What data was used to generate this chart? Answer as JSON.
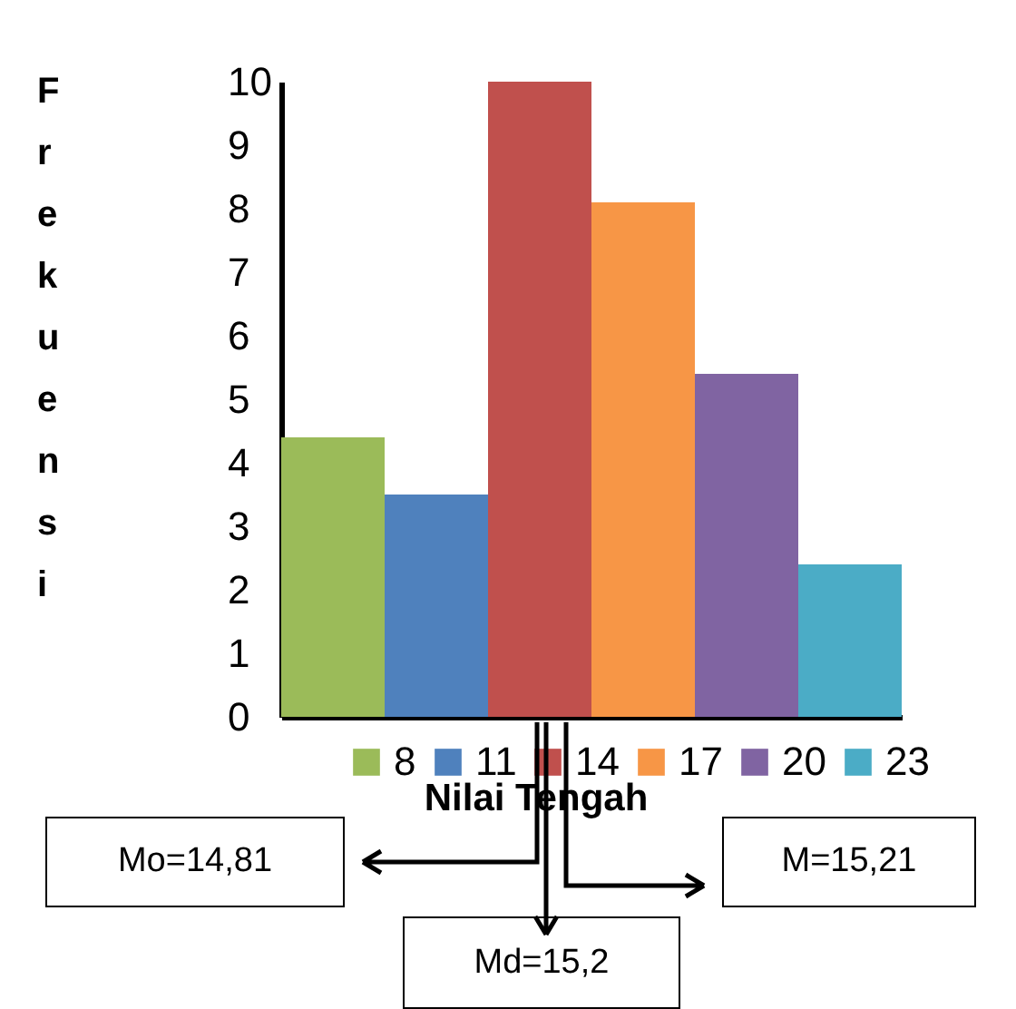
{
  "chart_data": {
    "type": "bar",
    "xlabel": "Nilai Tengah",
    "ylabel": "Frekuensi",
    "categories": [
      null,
      null,
      null,
      null,
      null,
      null
    ],
    "series": [
      {
        "name": "8",
        "color": "#9bbb59",
        "values": [
          4.4,
          null,
          null,
          null,
          null,
          null
        ]
      },
      {
        "name": "11",
        "color": "#4f81bd",
        "values": [
          null,
          3.5,
          null,
          null,
          null,
          null
        ]
      },
      {
        "name": "14",
        "color": "#c0504d",
        "values": [
          null,
          null,
          10,
          null,
          null,
          null
        ]
      },
      {
        "name": "17",
        "color": "#f79646",
        "values": [
          null,
          null,
          null,
          8.1,
          null,
          null
        ]
      },
      {
        "name": "20",
        "color": "#8064a2",
        "values": [
          null,
          null,
          null,
          null,
          5.4,
          null
        ]
      },
      {
        "name": "23",
        "color": "#4bacc6",
        "values": [
          null,
          null,
          null,
          null,
          null,
          2.4
        ]
      }
    ],
    "stacked": true,
    "ylim": [
      0,
      10
    ],
    "yticks": [
      0,
      1,
      2,
      3,
      4,
      5,
      6,
      7,
      8,
      9,
      10
    ],
    "legend": "bottom",
    "tick_labels": "y",
    "annotations": [
      "Mo=14,81",
      "Md=15,2",
      "M=15,21"
    ]
  }
}
